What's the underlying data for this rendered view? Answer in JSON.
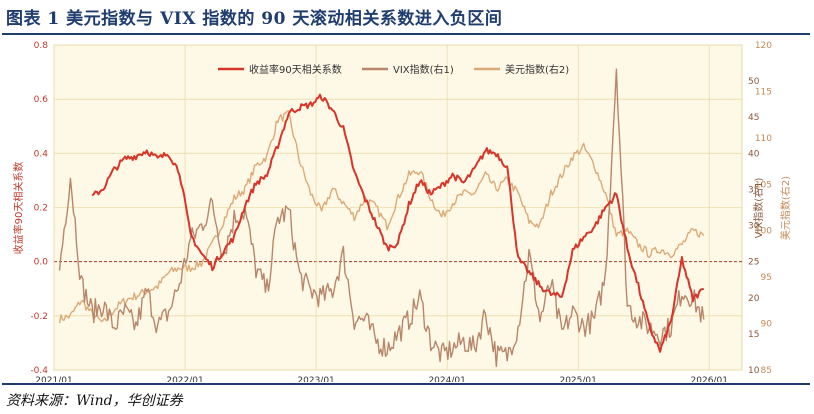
{
  "header": {
    "title": "图表 1   美元指数与 VIX 指数的 90 天滚动相关系数进入负区间"
  },
  "footer": {
    "source": "资料来源：Wind，华创证券"
  },
  "colors": {
    "corr": "#d7342a",
    "vix": "#b8866a",
    "usd": "#dcaa78",
    "bg": "#fdf9e6",
    "grid": "#ecdcaa"
  },
  "chart_data": {
    "type": "line",
    "xlabel": "",
    "x_tick_labels": [
      "2021/01",
      "2022/01",
      "2023/01",
      "2024/01",
      "2025/01",
      "2026/01"
    ],
    "legend_position": "top",
    "axes": {
      "left": {
        "label": "收益率90天相关系数",
        "ylim": [
          -0.4,
          0.8
        ],
        "ticks": [
          "-0.4",
          "-0.2",
          "0.0",
          "0.2",
          "0.4",
          "0.6",
          "0.8"
        ]
      },
      "right1": {
        "label": "VIX指数(右1)",
        "ylim": [
          10,
          55
        ],
        "ticks": [
          "10",
          "15",
          "20",
          "25",
          "30",
          "35",
          "40",
          "45",
          "50"
        ]
      },
      "right2": {
        "label": "美元指数(右2)",
        "ylim": [
          85,
          120
        ],
        "ticks": [
          "85",
          "90",
          "95",
          "100",
          "105",
          "110",
          "115",
          "120"
        ]
      }
    },
    "series": [
      {
        "name": "收益率90天相关系数",
        "axis": "left",
        "color": "#d7342a",
        "points": [
          [
            "2021-04",
            0.24
          ],
          [
            "2021-05",
            0.27
          ],
          [
            "2021-06",
            0.34
          ],
          [
            "2021-07",
            0.38
          ],
          [
            "2021-08",
            0.39
          ],
          [
            "2021-09",
            0.41
          ],
          [
            "2021-10",
            0.38
          ],
          [
            "2021-11",
            0.4
          ],
          [
            "2021-12",
            0.33
          ],
          [
            "2022-01",
            0.1
          ],
          [
            "2022-02",
            0.03
          ],
          [
            "2022-03",
            -0.02
          ],
          [
            "2022-04",
            0.04
          ],
          [
            "2022-05",
            0.09
          ],
          [
            "2022-06",
            0.21
          ],
          [
            "2022-07",
            0.29
          ],
          [
            "2022-08",
            0.32
          ],
          [
            "2022-09",
            0.43
          ],
          [
            "2022-10",
            0.55
          ],
          [
            "2022-11",
            0.57
          ],
          [
            "2022-12",
            0.58
          ],
          [
            "2023-01",
            0.61
          ],
          [
            "2023-02",
            0.56
          ],
          [
            "2023-03",
            0.49
          ],
          [
            "2023-04",
            0.33
          ],
          [
            "2023-05",
            0.23
          ],
          [
            "2023-06",
            0.14
          ],
          [
            "2023-07",
            0.05
          ],
          [
            "2023-08",
            0.07
          ],
          [
            "2023-09",
            0.21
          ],
          [
            "2023-10",
            0.3
          ],
          [
            "2023-11",
            0.25
          ],
          [
            "2023-12",
            0.28
          ],
          [
            "2024-01",
            0.32
          ],
          [
            "2024-02",
            0.29
          ],
          [
            "2024-03",
            0.34
          ],
          [
            "2024-04",
            0.41
          ],
          [
            "2024-05",
            0.4
          ],
          [
            "2024-06",
            0.35
          ],
          [
            "2024-07",
            0.01
          ],
          [
            "2024-08",
            -0.04
          ],
          [
            "2024-09",
            -0.09
          ],
          [
            "2024-10",
            -0.12
          ],
          [
            "2024-11",
            -0.13
          ],
          [
            "2024-12",
            0.04
          ],
          [
            "2025-01",
            0.09
          ],
          [
            "2025-02",
            0.13
          ],
          [
            "2025-03",
            0.2
          ],
          [
            "2025-04",
            0.25
          ],
          [
            "2025-05",
            0.05
          ],
          [
            "2025-06",
            -0.09
          ],
          [
            "2025-07",
            -0.24
          ],
          [
            "2025-08",
            -0.33
          ],
          [
            "2025-09",
            -0.22
          ],
          [
            "2025-10",
            0.01
          ],
          [
            "2025-11",
            -0.14
          ],
          [
            "2025-12",
            -0.1
          ]
        ]
      },
      {
        "name": "VIX指数(右1)",
        "axis": "right1",
        "color": "#b8866a",
        "points": [
          [
            "2021-01",
            24
          ],
          [
            "2021-02",
            37
          ],
          [
            "2021-03",
            22
          ],
          [
            "2021-04",
            18
          ],
          [
            "2021-05",
            19
          ],
          [
            "2021-06",
            16
          ],
          [
            "2021-07",
            18
          ],
          [
            "2021-08",
            16
          ],
          [
            "2021-09",
            21
          ],
          [
            "2021-10",
            16
          ],
          [
            "2021-11",
            18
          ],
          [
            "2021-12",
            22
          ],
          [
            "2022-01",
            28
          ],
          [
            "2022-02",
            30
          ],
          [
            "2022-03",
            33
          ],
          [
            "2022-04",
            26
          ],
          [
            "2022-05",
            31
          ],
          [
            "2022-06",
            32
          ],
          [
            "2022-07",
            24
          ],
          [
            "2022-08",
            21
          ],
          [
            "2022-09",
            31
          ],
          [
            "2022-10",
            32
          ],
          [
            "2022-11",
            23
          ],
          [
            "2022-12",
            21
          ],
          [
            "2023-01",
            20
          ],
          [
            "2023-02",
            21
          ],
          [
            "2023-03",
            26
          ],
          [
            "2023-04",
            17
          ],
          [
            "2023-05",
            17
          ],
          [
            "2023-06",
            14
          ],
          [
            "2023-07",
            13
          ],
          [
            "2023-08",
            15
          ],
          [
            "2023-09",
            17
          ],
          [
            "2023-10",
            20
          ],
          [
            "2023-11",
            14
          ],
          [
            "2023-12",
            12
          ],
          [
            "2024-01",
            13
          ],
          [
            "2024-02",
            14
          ],
          [
            "2024-03",
            13
          ],
          [
            "2024-04",
            18
          ],
          [
            "2024-05",
            12
          ],
          [
            "2024-06",
            12
          ],
          [
            "2024-07",
            16
          ],
          [
            "2024-08",
            26
          ],
          [
            "2024-09",
            17
          ],
          [
            "2024-10",
            22
          ],
          [
            "2024-11",
            15
          ],
          [
            "2024-12",
            18
          ],
          [
            "2025-01",
            16
          ],
          [
            "2025-02",
            17
          ],
          [
            "2025-03",
            23
          ],
          [
            "2025-04",
            52
          ],
          [
            "2025-05",
            19
          ],
          [
            "2025-06",
            17
          ],
          [
            "2025-07",
            16
          ],
          [
            "2025-08",
            15
          ],
          [
            "2025-09",
            16
          ],
          [
            "2025-10",
            21
          ],
          [
            "2025-11",
            20
          ],
          [
            "2025-12",
            17
          ]
        ]
      },
      {
        "name": "美元指数(右2)",
        "axis": "right2",
        "color": "#dcaa78",
        "points": [
          [
            "2021-01",
            90.5
          ],
          [
            "2021-02",
            90.8
          ],
          [
            "2021-03",
            92.5
          ],
          [
            "2021-04",
            91.0
          ],
          [
            "2021-05",
            90.0
          ],
          [
            "2021-06",
            91.5
          ],
          [
            "2021-07",
            92.5
          ],
          [
            "2021-08",
            93.0
          ],
          [
            "2021-09",
            93.5
          ],
          [
            "2021-10",
            94.0
          ],
          [
            "2021-11",
            95.5
          ],
          [
            "2021-12",
            96.0
          ],
          [
            "2022-01",
            96.0
          ],
          [
            "2022-02",
            96.5
          ],
          [
            "2022-03",
            98.5
          ],
          [
            "2022-04",
            101.0
          ],
          [
            "2022-05",
            103.5
          ],
          [
            "2022-06",
            104.5
          ],
          [
            "2022-07",
            107.0
          ],
          [
            "2022-08",
            108.0
          ],
          [
            "2022-09",
            112.0
          ],
          [
            "2022-10",
            112.5
          ],
          [
            "2022-11",
            107.5
          ],
          [
            "2022-12",
            104.0
          ],
          [
            "2023-01",
            102.0
          ],
          [
            "2023-02",
            104.5
          ],
          [
            "2023-03",
            103.0
          ],
          [
            "2023-04",
            101.5
          ],
          [
            "2023-05",
            103.5
          ],
          [
            "2023-06",
            102.5
          ],
          [
            "2023-07",
            100.5
          ],
          [
            "2023-08",
            103.5
          ],
          [
            "2023-09",
            106.0
          ],
          [
            "2023-10",
            106.5
          ],
          [
            "2023-11",
            103.5
          ],
          [
            "2023-12",
            101.5
          ],
          [
            "2024-01",
            103.0
          ],
          [
            "2024-02",
            104.0
          ],
          [
            "2024-03",
            104.0
          ],
          [
            "2024-04",
            106.0
          ],
          [
            "2024-05",
            104.5
          ],
          [
            "2024-06",
            105.5
          ],
          [
            "2024-07",
            104.0
          ],
          [
            "2024-08",
            101.0
          ],
          [
            "2024-09",
            100.5
          ],
          [
            "2024-10",
            104.0
          ],
          [
            "2024-11",
            106.0
          ],
          [
            "2024-12",
            108.0
          ],
          [
            "2025-01",
            109.0
          ],
          [
            "2025-02",
            107.0
          ],
          [
            "2025-03",
            104.0
          ],
          [
            "2025-04",
            99.5
          ],
          [
            "2025-05",
            100.0
          ],
          [
            "2025-06",
            98.5
          ],
          [
            "2025-07",
            97.5
          ],
          [
            "2025-08",
            98.0
          ],
          [
            "2025-09",
            97.5
          ],
          [
            "2025-10",
            98.5
          ],
          [
            "2025-11",
            100.0
          ],
          [
            "2025-12",
            99.5
          ]
        ]
      }
    ]
  }
}
